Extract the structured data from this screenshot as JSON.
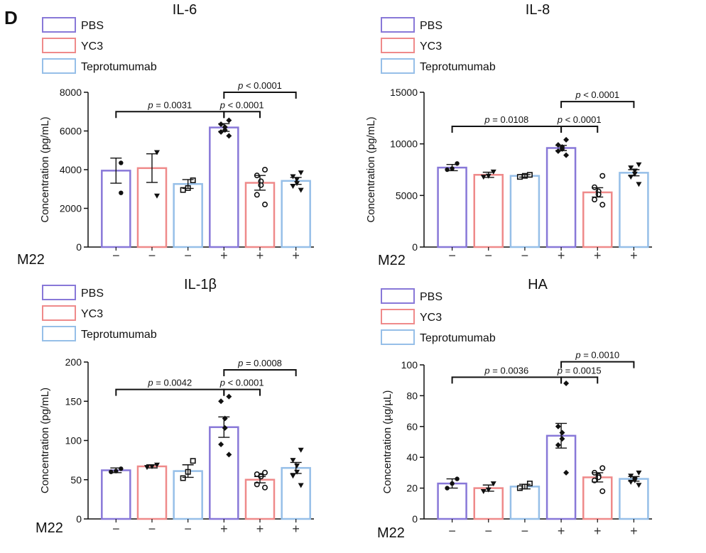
{
  "panel_label": "D",
  "condition_label": "M22",
  "colors": {
    "PBS": "#8878d8",
    "YC3": "#ef8a8a",
    "Teprotumumab": "#96bfe8",
    "axis": "#111111",
    "points": "#111111"
  },
  "chart_data": [
    {
      "type": "bar",
      "title": "IL-6",
      "ylabel": "Concentration (pg/mL)",
      "ylim": [
        0,
        8000
      ],
      "yticks": [
        0,
        2000,
        4000,
        6000,
        8000
      ],
      "legend": [
        "PBS",
        "YC3",
        "Teprotumumab"
      ],
      "m22": [
        "−",
        "−",
        "−",
        "+",
        "+",
        "+"
      ],
      "groups": [
        {
          "series": "PBS",
          "mean": 3950,
          "sem": 650,
          "marker": "circle",
          "points": [
            4350,
            2800
          ]
        },
        {
          "series": "YC3",
          "mean": 4080,
          "sem": 740,
          "marker": "triangle-down",
          "points": [
            4900,
            2650
          ]
        },
        {
          "series": "Teprotumumab",
          "mean": 3260,
          "sem": 230,
          "marker": "square",
          "points": [
            3450,
            3050,
            2950
          ]
        },
        {
          "series": "PBS",
          "mean": 6180,
          "sem": 200,
          "marker": "diamond",
          "points": [
            6550,
            6350,
            6200,
            6050,
            5950,
            5750
          ]
        },
        {
          "series": "YC3",
          "mean": 3320,
          "sem": 380,
          "marker": "circle-open",
          "points": [
            4000,
            3700,
            3400,
            3200,
            2700,
            2200
          ]
        },
        {
          "series": "Teprotumumab",
          "mean": 3420,
          "sem": 180,
          "marker": "triangle-down",
          "points": [
            3850,
            3650,
            3500,
            3300,
            3150,
            2950
          ]
        }
      ],
      "comparisons": [
        {
          "from": 0,
          "to": 3,
          "label": "p = 0.0031",
          "y": 7000
        },
        {
          "from": 3,
          "to": 4,
          "label": "p < 0.0001",
          "y": 7000
        },
        {
          "from": 3,
          "to": 5,
          "label": "p < 0.0001",
          "y": 8000
        }
      ]
    },
    {
      "type": "bar",
      "title": "IL-8",
      "ylabel": "Concentration (pg/mL)",
      "ylim": [
        0,
        15000
      ],
      "yticks": [
        0,
        5000,
        10000,
        15000
      ],
      "legend": [
        "PBS",
        "YC3",
        "Teprotumumab"
      ],
      "m22": [
        "−",
        "−",
        "−",
        "+",
        "+",
        "+"
      ],
      "groups": [
        {
          "series": "PBS",
          "mean": 7700,
          "sem": 300,
          "marker": "circle",
          "points": [
            8100,
            7600,
            7500
          ]
        },
        {
          "series": "YC3",
          "mean": 7000,
          "sem": 250,
          "marker": "triangle-down",
          "points": [
            7300,
            6900,
            6800
          ]
        },
        {
          "series": "Teprotumumab",
          "mean": 6900,
          "sem": 120,
          "marker": "square",
          "points": [
            7000,
            6900,
            6800
          ]
        },
        {
          "series": "PBS",
          "mean": 9600,
          "sem": 250,
          "marker": "diamond",
          "points": [
            10400,
            9900,
            9700,
            9500,
            9300,
            8900
          ]
        },
        {
          "series": "YC3",
          "mean": 5300,
          "sem": 450,
          "marker": "circle-open",
          "points": [
            6900,
            5800,
            5400,
            5100,
            4600,
            4100
          ]
        },
        {
          "series": "Teprotumumab",
          "mean": 7200,
          "sem": 300,
          "marker": "triangle-down",
          "points": [
            8000,
            7700,
            7400,
            7100,
            6800,
            6100
          ]
        }
      ],
      "comparisons": [
        {
          "from": 0,
          "to": 3,
          "label": "p = 0.0108",
          "y": 11700
        },
        {
          "from": 3,
          "to": 4,
          "label": "p < 0.0001",
          "y": 11700
        },
        {
          "from": 3,
          "to": 5,
          "label": "p < 0.0001",
          "y": 14100
        }
      ]
    },
    {
      "type": "bar",
      "title": "IL-1β",
      "ylabel": "Concentration (pg/mL)",
      "ylim": [
        0,
        200
      ],
      "yticks": [
        0,
        50,
        100,
        150,
        200
      ],
      "legend": [
        "PBS",
        "YC3",
        "Teprotumumab"
      ],
      "m22": [
        "−",
        "−",
        "−",
        "+",
        "+",
        "+"
      ],
      "groups": [
        {
          "series": "PBS",
          "mean": 62,
          "sem": 3,
          "marker": "circle",
          "points": [
            64,
            61,
            60
          ]
        },
        {
          "series": "YC3",
          "mean": 67,
          "sem": 2,
          "marker": "triangle-down",
          "points": [
            69,
            67,
            66
          ]
        },
        {
          "series": "Teprotumumab",
          "mean": 61,
          "sem": 8,
          "marker": "square",
          "points": [
            74,
            60,
            52
          ]
        },
        {
          "series": "PBS",
          "mean": 117,
          "sem": 13,
          "marker": "diamond",
          "points": [
            156,
            150,
            128,
            116,
            95,
            82
          ]
        },
        {
          "series": "YC3",
          "mean": 50,
          "sem": 4,
          "marker": "circle-open",
          "points": [
            59,
            57,
            55,
            54,
            44,
            40
          ]
        },
        {
          "series": "Teprotumumab",
          "mean": 65,
          "sem": 7,
          "marker": "triangle-down",
          "points": [
            88,
            75,
            68,
            60,
            55,
            43
          ]
        }
      ],
      "comparisons": [
        {
          "from": 0,
          "to": 3,
          "label": "p = 0.0042",
          "y": 165
        },
        {
          "from": 3,
          "to": 4,
          "label": "p < 0.0001",
          "y": 165
        },
        {
          "from": 3,
          "to": 5,
          "label": "p = 0.0008",
          "y": 190
        }
      ]
    },
    {
      "type": "bar",
      "title": "HA",
      "ylabel": "Concentration (µg/µL)",
      "ylim": [
        0,
        100
      ],
      "yticks": [
        0,
        20,
        40,
        60,
        80,
        100
      ],
      "legend": [
        "PBS",
        "YC3",
        "Teprotumumab"
      ],
      "m22": [
        "−",
        "−",
        "−",
        "+",
        "+",
        "+"
      ],
      "groups": [
        {
          "series": "PBS",
          "mean": 23,
          "sem": 3,
          "marker": "circle",
          "points": [
            26,
            23,
            20
          ]
        },
        {
          "series": "YC3",
          "mean": 20,
          "sem": 2,
          "marker": "triangle-down",
          "points": [
            23,
            19,
            18
          ]
        },
        {
          "series": "Teprotumumab",
          "mean": 21,
          "sem": 1.5,
          "marker": "square",
          "points": [
            23,
            21,
            20
          ]
        },
        {
          "series": "PBS",
          "mean": 54,
          "sem": 8,
          "marker": "diamond",
          "points": [
            88,
            60,
            56,
            52,
            48,
            30
          ]
        },
        {
          "series": "YC3",
          "mean": 27,
          "sem": 3,
          "marker": "circle-open",
          "points": [
            33,
            30,
            28,
            27,
            25,
            18
          ]
        },
        {
          "series": "Teprotumumab",
          "mean": 26,
          "sem": 1.5,
          "marker": "triangle-down",
          "points": [
            30,
            28,
            26,
            25,
            24,
            22
          ]
        }
      ],
      "comparisons": [
        {
          "from": 0,
          "to": 3,
          "label": "p = 0.0036",
          "y": 92
        },
        {
          "from": 3,
          "to": 4,
          "label": "p = 0.0015",
          "y": 92
        },
        {
          "from": 3,
          "to": 5,
          "label": "p = 0.0010",
          "y": 102
        }
      ]
    }
  ]
}
